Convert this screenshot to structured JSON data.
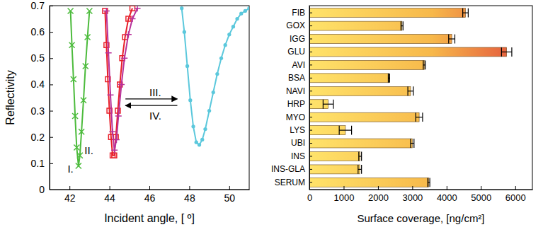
{
  "chart_data": [
    {
      "type": "line",
      "x_label": "Incident angle, [ º]",
      "y_label": "Reflectivity",
      "xlim": [
        41,
        51
      ],
      "xticks": [
        42,
        44,
        46,
        48,
        50
      ],
      "ylim": [
        0,
        0.7
      ],
      "yticks": [
        0,
        0.1,
        0.2,
        0.3,
        0.4,
        0.5,
        0.6,
        0.7
      ],
      "series": [
        {
          "color": "#4cbb3c",
          "marker": "x",
          "line_style": "solid",
          "x": [
            42.05,
            42.12,
            42.2,
            42.28,
            42.36,
            42.45,
            42.52,
            42.6,
            42.7,
            42.8,
            42.9,
            43.0
          ],
          "values": [
            0.68,
            0.55,
            0.42,
            0.28,
            0.16,
            0.09,
            0.13,
            0.22,
            0.34,
            0.47,
            0.58,
            0.68
          ]
        },
        {
          "color": "#e8202a",
          "marker": "square",
          "line_style": "solid",
          "x": [
            43.78,
            43.85,
            43.92,
            44.0,
            44.08,
            44.16,
            44.24,
            44.32,
            44.42,
            44.52,
            44.64,
            44.78,
            44.95,
            45.15
          ],
          "values": [
            0.68,
            0.55,
            0.42,
            0.3,
            0.2,
            0.13,
            0.13,
            0.2,
            0.3,
            0.4,
            0.5,
            0.58,
            0.65,
            0.69
          ]
        },
        {
          "color": "#b8319a",
          "marker": "plus",
          "line_style": "solid",
          "x": [
            43.85,
            43.95,
            44.05,
            44.15,
            44.25,
            44.35,
            44.45,
            44.6,
            44.75,
            44.95,
            45.15,
            45.4
          ],
          "values": [
            0.68,
            0.52,
            0.36,
            0.22,
            0.15,
            0.19,
            0.28,
            0.4,
            0.5,
            0.59,
            0.65,
            0.69
          ]
        },
        {
          "color": "#5bc8dc",
          "marker": "circle",
          "line_style": "solid",
          "x": [
            47.62,
            47.75,
            47.9,
            48.05,
            48.2,
            48.35,
            48.5,
            48.65,
            48.8,
            49.0,
            49.2,
            49.4,
            49.6,
            49.8,
            50.0,
            50.2,
            50.4,
            50.6,
            50.8,
            51.0
          ],
          "values": [
            0.69,
            0.6,
            0.47,
            0.34,
            0.24,
            0.18,
            0.17,
            0.19,
            0.23,
            0.3,
            0.37,
            0.44,
            0.5,
            0.55,
            0.59,
            0.62,
            0.65,
            0.67,
            0.68,
            0.69
          ]
        }
      ],
      "annotations": [
        {
          "text": "I.",
          "x": 41.9,
          "y": 0.08
        },
        {
          "text": "II.",
          "x": 42.75,
          "y": 0.15
        },
        {
          "text": "III.",
          "x": 46.0,
          "y": 0.37
        },
        {
          "text": "IV.",
          "x": 46.0,
          "y": 0.28
        }
      ]
    },
    {
      "type": "bar",
      "orientation": "horizontal",
      "x_label": "Surface coverage, [ng/cm²]",
      "categories": [
        "FIB",
        "GOX",
        "IGG",
        "GLU",
        "AVI",
        "BSA",
        "NAVI",
        "HRP",
        "MYO",
        "LYS",
        "UBI",
        "INS",
        "INS-GLA",
        "SERUM"
      ],
      "values": [
        4550,
        2700,
        4150,
        5750,
        3350,
        2320,
        2950,
        550,
        3200,
        1050,
        3000,
        1480,
        1470,
        3480
      ],
      "errors": [
        80,
        30,
        90,
        150,
        30,
        20,
        80,
        150,
        100,
        180,
        50,
        40,
        50,
        30
      ],
      "color": "#f7b84a",
      "xlim": [
        0,
        6500
      ],
      "xticks": [
        0,
        1000,
        2000,
        3000,
        4000,
        5000,
        6000
      ]
    }
  ]
}
